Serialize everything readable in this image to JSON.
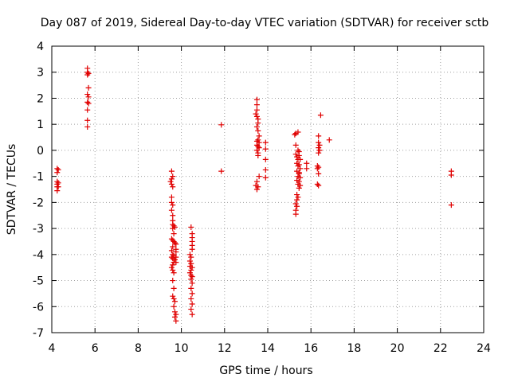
{
  "chart_data": {
    "type": "scatter",
    "title": "Day 087 of 2019, Sidereal Day-to-day VTEC variation (SDTVAR) for receiver sctb",
    "xlabel": "GPS time / hours",
    "ylabel": "SDTVAR / TECUs",
    "xlim": [
      4,
      24
    ],
    "ylim": [
      -7,
      4
    ],
    "xticks": [
      "4",
      "6",
      "8",
      "10",
      "12",
      "14",
      "16",
      "18",
      "20",
      "22",
      "24"
    ],
    "yticks": [
      "4",
      "3",
      "2",
      "1",
      "0",
      "-1",
      "-2",
      "-3",
      "-4",
      "-5",
      "-6",
      "-7"
    ],
    "grid": true,
    "marker": "+",
    "series": [
      {
        "name": "SDTVAR",
        "color": "#e00000",
        "points": [
          [
            4.25,
            -0.7
          ],
          [
            4.25,
            -0.85
          ],
          [
            4.25,
            -1.2
          ],
          [
            4.25,
            -1.3
          ],
          [
            4.25,
            -1.4
          ],
          [
            4.25,
            -1.55
          ],
          [
            4.3,
            -0.75
          ],
          [
            4.3,
            -1.25
          ],
          [
            4.3,
            -1.4
          ],
          [
            5.65,
            3.15
          ],
          [
            5.65,
            3.0
          ],
          [
            5.7,
            2.95
          ],
          [
            5.65,
            2.9
          ],
          [
            5.7,
            2.4
          ],
          [
            5.65,
            2.15
          ],
          [
            5.7,
            2.05
          ],
          [
            5.65,
            1.85
          ],
          [
            5.7,
            1.8
          ],
          [
            5.65,
            1.55
          ],
          [
            5.65,
            1.15
          ],
          [
            5.65,
            0.9
          ],
          [
            9.55,
            -0.8
          ],
          [
            9.6,
            -1.0
          ],
          [
            9.55,
            -1.1
          ],
          [
            9.5,
            -1.2
          ],
          [
            9.55,
            -1.3
          ],
          [
            9.6,
            -1.4
          ],
          [
            9.55,
            -1.8
          ],
          [
            9.55,
            -2.0
          ],
          [
            9.6,
            -2.1
          ],
          [
            9.55,
            -2.3
          ],
          [
            9.6,
            -2.5
          ],
          [
            9.6,
            -2.7
          ],
          [
            9.6,
            -2.85
          ],
          [
            9.65,
            -2.9
          ],
          [
            9.7,
            -2.95
          ],
          [
            9.6,
            -3.0
          ],
          [
            9.65,
            -3.2
          ],
          [
            9.55,
            -3.4
          ],
          [
            9.6,
            -3.45
          ],
          [
            9.65,
            -3.5
          ],
          [
            9.7,
            -3.55
          ],
          [
            9.6,
            -3.7
          ],
          [
            9.55,
            -3.85
          ],
          [
            9.6,
            -4.0
          ],
          [
            9.65,
            -4.05
          ],
          [
            9.55,
            -4.1
          ],
          [
            9.6,
            -4.15
          ],
          [
            9.7,
            -4.2
          ],
          [
            9.65,
            -4.3
          ],
          [
            9.6,
            -4.4
          ],
          [
            9.55,
            -4.5
          ],
          [
            9.6,
            -4.6
          ],
          [
            9.65,
            -4.7
          ],
          [
            9.6,
            -5.0
          ],
          [
            9.65,
            -5.3
          ],
          [
            9.6,
            -5.6
          ],
          [
            9.65,
            -5.7
          ],
          [
            9.7,
            -5.8
          ],
          [
            9.65,
            -6.0
          ],
          [
            9.7,
            -6.2
          ],
          [
            9.75,
            -6.3
          ],
          [
            9.7,
            -6.4
          ],
          [
            9.75,
            -6.55
          ],
          [
            9.75,
            -3.6
          ],
          [
            9.75,
            -3.8
          ],
          [
            9.75,
            -3.9
          ],
          [
            9.75,
            -4.1
          ],
          [
            9.75,
            -4.3
          ],
          [
            10.45,
            -2.95
          ],
          [
            10.5,
            -3.2
          ],
          [
            10.5,
            -3.35
          ],
          [
            10.5,
            -3.5
          ],
          [
            10.5,
            -3.65
          ],
          [
            10.5,
            -3.8
          ],
          [
            10.4,
            -4.0
          ],
          [
            10.45,
            -4.1
          ],
          [
            10.4,
            -4.25
          ],
          [
            10.45,
            -4.35
          ],
          [
            10.4,
            -4.45
          ],
          [
            10.5,
            -4.5
          ],
          [
            10.45,
            -4.6
          ],
          [
            10.4,
            -4.7
          ],
          [
            10.45,
            -4.8
          ],
          [
            10.5,
            -4.85
          ],
          [
            10.45,
            -4.95
          ],
          [
            10.5,
            -5.1
          ],
          [
            10.45,
            -5.3
          ],
          [
            10.5,
            -5.5
          ],
          [
            10.45,
            -5.7
          ],
          [
            10.5,
            -5.9
          ],
          [
            10.45,
            -6.1
          ],
          [
            10.5,
            -6.3
          ],
          [
            11.85,
            0.98
          ],
          [
            11.85,
            -0.8
          ],
          [
            13.5,
            1.95
          ],
          [
            13.5,
            1.75
          ],
          [
            13.5,
            1.55
          ],
          [
            13.45,
            1.4
          ],
          [
            13.5,
            1.3
          ],
          [
            13.55,
            1.2
          ],
          [
            13.55,
            1.05
          ],
          [
            13.5,
            0.9
          ],
          [
            13.55,
            0.75
          ],
          [
            13.6,
            0.55
          ],
          [
            13.55,
            0.4
          ],
          [
            13.5,
            0.35
          ],
          [
            13.6,
            0.3
          ],
          [
            13.5,
            0.2
          ],
          [
            13.55,
            0.15
          ],
          [
            13.6,
            0.1
          ],
          [
            13.5,
            0.0
          ],
          [
            13.55,
            -0.1
          ],
          [
            13.55,
            -0.2
          ],
          [
            13.6,
            -1.0
          ],
          [
            13.5,
            -1.2
          ],
          [
            13.45,
            -1.35
          ],
          [
            13.55,
            -1.4
          ],
          [
            13.5,
            -1.5
          ],
          [
            13.9,
            0.3
          ],
          [
            13.9,
            0.05
          ],
          [
            13.9,
            -0.35
          ],
          [
            13.9,
            -0.75
          ],
          [
            13.9,
            -1.05
          ],
          [
            15.25,
            0.6
          ],
          [
            15.3,
            0.65
          ],
          [
            15.4,
            0.7
          ],
          [
            15.3,
            0.2
          ],
          [
            15.4,
            0.0
          ],
          [
            15.3,
            -0.15
          ],
          [
            15.35,
            -0.25
          ],
          [
            15.4,
            -0.35
          ],
          [
            15.35,
            -0.5
          ],
          [
            15.4,
            -0.6
          ],
          [
            15.35,
            -0.8
          ],
          [
            15.45,
            -0.9
          ],
          [
            15.4,
            -1.0
          ],
          [
            15.35,
            -1.15
          ],
          [
            15.4,
            -1.3
          ],
          [
            15.45,
            -1.45
          ],
          [
            15.35,
            -1.7
          ],
          [
            15.4,
            -1.8
          ],
          [
            15.35,
            -1.9
          ],
          [
            15.3,
            -2.05
          ],
          [
            15.35,
            -2.15
          ],
          [
            15.3,
            -2.3
          ],
          [
            15.3,
            -2.45
          ],
          [
            15.45,
            -0.05
          ],
          [
            15.45,
            -0.2
          ],
          [
            15.5,
            -0.35
          ],
          [
            15.45,
            -0.55
          ],
          [
            15.5,
            -0.7
          ],
          [
            15.45,
            -0.85
          ],
          [
            15.5,
            -1.05
          ],
          [
            15.45,
            -1.2
          ],
          [
            15.5,
            -1.35
          ],
          [
            15.8,
            -0.5
          ],
          [
            15.8,
            -0.7
          ],
          [
            16.35,
            0.55
          ],
          [
            16.35,
            0.3
          ],
          [
            16.4,
            0.2
          ],
          [
            16.35,
            0.1
          ],
          [
            16.4,
            0.0
          ],
          [
            16.35,
            -0.1
          ],
          [
            16.45,
            1.35
          ],
          [
            16.3,
            -0.6
          ],
          [
            16.35,
            -0.65
          ],
          [
            16.3,
            -0.7
          ],
          [
            16.35,
            -0.9
          ],
          [
            16.3,
            -1.3
          ],
          [
            16.35,
            -1.35
          ],
          [
            16.85,
            0.4
          ],
          [
            22.5,
            -0.8
          ],
          [
            22.5,
            -0.95
          ],
          [
            22.5,
            -2.1
          ]
        ]
      }
    ]
  }
}
